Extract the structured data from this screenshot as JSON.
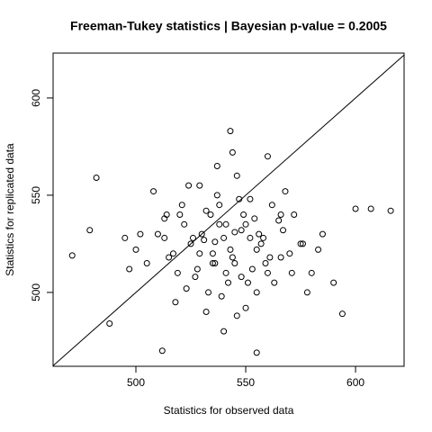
{
  "chart_data": {
    "type": "scatter",
    "title": "Freeman-Tukey statistics | Bayesian p-value = 0.2005",
    "x_label": "Statistics for observed data",
    "y_label": "Statistics for replicated data",
    "identity_line": true,
    "color": "#000000",
    "xlim": [
      462.3,
      622.1
    ],
    "ylim": [
      462.0,
      623.1
    ],
    "xticks": [
      500,
      550,
      600
    ],
    "yticks": [
      500,
      550,
      600
    ],
    "x": [
      471,
      482,
      616,
      543,
      555,
      512,
      488,
      594,
      479,
      607,
      600,
      525,
      530,
      535,
      540,
      545,
      550,
      555,
      560,
      520,
      515,
      538,
      542,
      548,
      533,
      528,
      552,
      558,
      565,
      570,
      510,
      505,
      500,
      575,
      580,
      585,
      590,
      495,
      522,
      527,
      531,
      537,
      544,
      549,
      553,
      557,
      562,
      567,
      518,
      513,
      508,
      536,
      541,
      546,
      539,
      534,
      529,
      524,
      551,
      556,
      561,
      566,
      571,
      576,
      519,
      514,
      532,
      547,
      543,
      537,
      526,
      523,
      554,
      559,
      563,
      568,
      502,
      497,
      572,
      578,
      583,
      517,
      521,
      540,
      544,
      550,
      535,
      529,
      546,
      552,
      513,
      560,
      566,
      541,
      538,
      536,
      532,
      548,
      545,
      555
    ],
    "values": [
      519,
      559,
      542,
      583,
      469,
      470,
      484,
      489,
      532,
      543,
      543,
      525,
      530,
      520,
      528,
      515,
      535,
      522,
      510,
      540,
      518,
      545,
      505,
      532,
      500,
      512,
      548,
      528,
      537,
      520,
      530,
      515,
      522,
      525,
      510,
      530,
      505,
      528,
      535,
      508,
      527,
      550,
      518,
      540,
      512,
      525,
      545,
      532,
      495,
      528,
      552,
      515,
      535,
      560,
      498,
      540,
      520,
      555,
      505,
      530,
      518,
      540,
      510,
      525,
      510,
      540,
      490,
      548,
      522,
      565,
      528,
      502,
      538,
      515,
      505,
      552,
      530,
      512,
      540,
      500,
      522,
      520,
      545,
      480,
      572,
      492,
      515,
      555,
      488,
      528,
      538,
      570,
      518,
      510,
      535,
      526,
      542,
      508,
      531,
      500
    ]
  }
}
